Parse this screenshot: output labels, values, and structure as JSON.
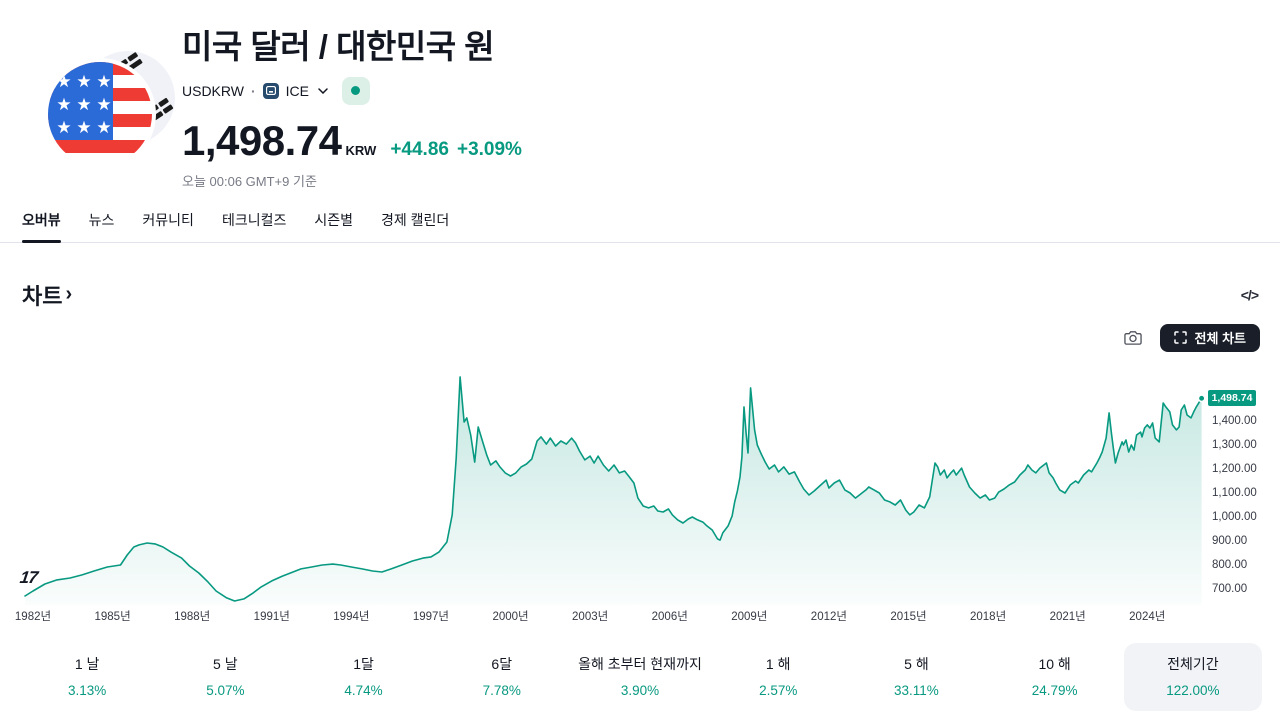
{
  "header": {
    "title": "미국 달러 / 대한민국 원",
    "symbol": "USDKRW",
    "sep_dot": "·",
    "exchange": "ICE",
    "price": "1,498.74",
    "currency": "KRW",
    "change_abs": "+44.86",
    "change_pct": "+3.09%",
    "timestamp": "오늘 00:06 GMT+9 기준",
    "status_color": "#089981"
  },
  "tabs": [
    {
      "label": "오버뷰",
      "active": true
    },
    {
      "label": "뉴스",
      "active": false
    },
    {
      "label": "커뮤니티",
      "active": false
    },
    {
      "label": "테크니컬즈",
      "active": false
    },
    {
      "label": "시즌별",
      "active": false
    },
    {
      "label": "경제 캘린더",
      "active": false
    }
  ],
  "chart_section": {
    "title": "차트",
    "link_arrow": "›",
    "code_icon": "</>",
    "fullscreen_label": "전체 차트",
    "watermark": "17"
  },
  "chart_data": {
    "type": "area",
    "title": "차트",
    "line_color": "#089981",
    "last_value": 1498.74,
    "last_label": "1,498.74",
    "x_range": [
      1981.7,
      2026.1
    ],
    "y_range": [
      650,
      1620
    ],
    "grid": false,
    "legend": false,
    "x_ticks": [
      {
        "year": 1982,
        "label": "1982년"
      },
      {
        "year": 1985,
        "label": "1985년"
      },
      {
        "year": 1988,
        "label": "1988년"
      },
      {
        "year": 1991,
        "label": "1991년"
      },
      {
        "year": 1994,
        "label": "1994년"
      },
      {
        "year": 1997,
        "label": "1997년"
      },
      {
        "year": 2000,
        "label": "2000년"
      },
      {
        "year": 2003,
        "label": "2003년"
      },
      {
        "year": 2006,
        "label": "2006년"
      },
      {
        "year": 2009,
        "label": "2009년"
      },
      {
        "year": 2012,
        "label": "2012년"
      },
      {
        "year": 2015,
        "label": "2015년"
      },
      {
        "year": 2018,
        "label": "2018년"
      },
      {
        "year": 2021,
        "label": "2021년"
      },
      {
        "year": 2024,
        "label": "2024년"
      }
    ],
    "y_ticks": [
      {
        "value": 1400,
        "label": "1,400.00"
      },
      {
        "value": 1300,
        "label": "1,300.00"
      },
      {
        "value": 1200,
        "label": "1,200.00"
      },
      {
        "value": 1100,
        "label": "1,100.00"
      },
      {
        "value": 1000,
        "label": "1,000.00"
      },
      {
        "value": 900,
        "label": "900.00"
      },
      {
        "value": 800,
        "label": "800.00"
      },
      {
        "value": 700,
        "label": "700.00"
      }
    ],
    "points": [
      [
        1981.7,
        675
      ],
      [
        1982.0,
        696
      ],
      [
        1982.45,
        725
      ],
      [
        1982.9,
        742
      ],
      [
        1983.4,
        750
      ],
      [
        1983.85,
        763
      ],
      [
        1984.3,
        779
      ],
      [
        1984.8,
        796
      ],
      [
        1985.3,
        804
      ],
      [
        1985.55,
        846
      ],
      [
        1985.8,
        879
      ],
      [
        1986.0,
        888
      ],
      [
        1986.3,
        896
      ],
      [
        1986.6,
        892
      ],
      [
        1986.9,
        879
      ],
      [
        1987.2,
        858
      ],
      [
        1987.6,
        833
      ],
      [
        1987.9,
        800
      ],
      [
        1988.25,
        771
      ],
      [
        1988.6,
        733
      ],
      [
        1988.9,
        696
      ],
      [
        1989.3,
        667
      ],
      [
        1989.6,
        654
      ],
      [
        1989.95,
        663
      ],
      [
        1990.3,
        688
      ],
      [
        1990.6,
        713
      ],
      [
        1991.0,
        738
      ],
      [
        1991.4,
        758
      ],
      [
        1991.8,
        775
      ],
      [
        1992.1,
        788
      ],
      [
        1992.5,
        796
      ],
      [
        1992.9,
        804
      ],
      [
        1993.3,
        808
      ],
      [
        1993.6,
        804
      ],
      [
        1994.0,
        796
      ],
      [
        1994.4,
        788
      ],
      [
        1994.8,
        779
      ],
      [
        1995.15,
        775
      ],
      [
        1995.5,
        788
      ],
      [
        1995.9,
        804
      ],
      [
        1996.3,
        821
      ],
      [
        1996.7,
        833
      ],
      [
        1997.0,
        838
      ],
      [
        1997.3,
        858
      ],
      [
        1997.6,
        900
      ],
      [
        1997.8,
        1013
      ],
      [
        1997.95,
        1250
      ],
      [
        1998.1,
        1588
      ],
      [
        1998.25,
        1400
      ],
      [
        1998.35,
        1417
      ],
      [
        1998.5,
        1346
      ],
      [
        1998.65,
        1233
      ],
      [
        1998.78,
        1379
      ],
      [
        1998.95,
        1317
      ],
      [
        1999.1,
        1263
      ],
      [
        1999.25,
        1221
      ],
      [
        1999.45,
        1238
      ],
      [
        1999.6,
        1213
      ],
      [
        1999.8,
        1188
      ],
      [
        2000.0,
        1175
      ],
      [
        2000.2,
        1188
      ],
      [
        2000.4,
        1213
      ],
      [
        2000.6,
        1225
      ],
      [
        2000.8,
        1246
      ],
      [
        2001.0,
        1321
      ],
      [
        2001.15,
        1338
      ],
      [
        2001.35,
        1308
      ],
      [
        2001.5,
        1333
      ],
      [
        2001.7,
        1300
      ],
      [
        2001.9,
        1321
      ],
      [
        2002.1,
        1308
      ],
      [
        2002.3,
        1333
      ],
      [
        2002.45,
        1313
      ],
      [
        2002.6,
        1279
      ],
      [
        2002.8,
        1242
      ],
      [
        2003.0,
        1258
      ],
      [
        2003.15,
        1229
      ],
      [
        2003.3,
        1258
      ],
      [
        2003.5,
        1221
      ],
      [
        2003.7,
        1196
      ],
      [
        2003.9,
        1221
      ],
      [
        2004.1,
        1188
      ],
      [
        2004.3,
        1196
      ],
      [
        2004.45,
        1175
      ],
      [
        2004.65,
        1146
      ],
      [
        2004.8,
        1083
      ],
      [
        2005.0,
        1050
      ],
      [
        2005.2,
        1042
      ],
      [
        2005.4,
        1050
      ],
      [
        2005.55,
        1029
      ],
      [
        2005.75,
        1025
      ],
      [
        2005.95,
        1038
      ],
      [
        2006.1,
        1013
      ],
      [
        2006.3,
        992
      ],
      [
        2006.5,
        979
      ],
      [
        2006.7,
        996
      ],
      [
        2006.85,
        1004
      ],
      [
        2007.05,
        992
      ],
      [
        2007.25,
        983
      ],
      [
        2007.4,
        967
      ],
      [
        2007.6,
        950
      ],
      [
        2007.8,
        913
      ],
      [
        2007.9,
        908
      ],
      [
        2008.0,
        938
      ],
      [
        2008.2,
        967
      ],
      [
        2008.35,
        1008
      ],
      [
        2008.45,
        1067
      ],
      [
        2008.55,
        1113
      ],
      [
        2008.65,
        1171
      ],
      [
        2008.72,
        1254
      ],
      [
        2008.8,
        1463
      ],
      [
        2008.88,
        1354
      ],
      [
        2008.95,
        1271
      ],
      [
        2009.05,
        1542
      ],
      [
        2009.2,
        1367
      ],
      [
        2009.3,
        1304
      ],
      [
        2009.45,
        1267
      ],
      [
        2009.6,
        1233
      ],
      [
        2009.75,
        1204
      ],
      [
        2009.95,
        1221
      ],
      [
        2010.1,
        1192
      ],
      [
        2010.3,
        1213
      ],
      [
        2010.5,
        1183
      ],
      [
        2010.7,
        1192
      ],
      [
        2010.9,
        1150
      ],
      [
        2011.05,
        1121
      ],
      [
        2011.25,
        1096
      ],
      [
        2011.45,
        1113
      ],
      [
        2011.7,
        1138
      ],
      [
        2011.9,
        1158
      ],
      [
        2012.0,
        1125
      ],
      [
        2012.2,
        1146
      ],
      [
        2012.4,
        1158
      ],
      [
        2012.6,
        1117
      ],
      [
        2012.8,
        1104
      ],
      [
        2013.0,
        1083
      ],
      [
        2013.2,
        1100
      ],
      [
        2013.4,
        1117
      ],
      [
        2013.5,
        1129
      ],
      [
        2013.7,
        1117
      ],
      [
        2013.9,
        1104
      ],
      [
        2014.1,
        1075
      ],
      [
        2014.3,
        1067
      ],
      [
        2014.5,
        1054
      ],
      [
        2014.7,
        1075
      ],
      [
        2014.9,
        1033
      ],
      [
        2015.05,
        1013
      ],
      [
        2015.2,
        1025
      ],
      [
        2015.4,
        1054
      ],
      [
        2015.6,
        1042
      ],
      [
        2015.8,
        1088
      ],
      [
        2016.0,
        1229
      ],
      [
        2016.1,
        1213
      ],
      [
        2016.2,
        1179
      ],
      [
        2016.35,
        1200
      ],
      [
        2016.45,
        1167
      ],
      [
        2016.6,
        1188
      ],
      [
        2016.7,
        1200
      ],
      [
        2016.8,
        1179
      ],
      [
        2017.0,
        1208
      ],
      [
        2017.1,
        1179
      ],
      [
        2017.3,
        1129
      ],
      [
        2017.5,
        1104
      ],
      [
        2017.7,
        1083
      ],
      [
        2017.9,
        1096
      ],
      [
        2018.05,
        1075
      ],
      [
        2018.25,
        1083
      ],
      [
        2018.4,
        1108
      ],
      [
        2018.6,
        1121
      ],
      [
        2018.8,
        1138
      ],
      [
        2019.0,
        1150
      ],
      [
        2019.2,
        1179
      ],
      [
        2019.4,
        1200
      ],
      [
        2019.5,
        1221
      ],
      [
        2019.65,
        1200
      ],
      [
        2019.8,
        1188
      ],
      [
        2019.95,
        1208
      ],
      [
        2020.1,
        1221
      ],
      [
        2020.2,
        1229
      ],
      [
        2020.3,
        1188
      ],
      [
        2020.45,
        1167
      ],
      [
        2020.55,
        1146
      ],
      [
        2020.7,
        1117
      ],
      [
        2020.9,
        1104
      ],
      [
        2021.1,
        1138
      ],
      [
        2021.3,
        1154
      ],
      [
        2021.4,
        1146
      ],
      [
        2021.6,
        1179
      ],
      [
        2021.8,
        1200
      ],
      [
        2021.9,
        1192
      ],
      [
        2022.1,
        1229
      ],
      [
        2022.2,
        1250
      ],
      [
        2022.3,
        1275
      ],
      [
        2022.45,
        1333
      ],
      [
        2022.56,
        1438
      ],
      [
        2022.65,
        1354
      ],
      [
        2022.72,
        1292
      ],
      [
        2022.8,
        1229
      ],
      [
        2022.9,
        1271
      ],
      [
        2023.05,
        1317
      ],
      [
        2023.1,
        1304
      ],
      [
        2023.2,
        1325
      ],
      [
        2023.3,
        1275
      ],
      [
        2023.4,
        1304
      ],
      [
        2023.5,
        1283
      ],
      [
        2023.6,
        1346
      ],
      [
        2023.75,
        1358
      ],
      [
        2023.8,
        1338
      ],
      [
        2023.9,
        1375
      ],
      [
        2024.0,
        1388
      ],
      [
        2024.1,
        1375
      ],
      [
        2024.2,
        1396
      ],
      [
        2024.3,
        1333
      ],
      [
        2024.45,
        1317
      ],
      [
        2024.6,
        1479
      ],
      [
        2024.7,
        1463
      ],
      [
        2024.85,
        1442
      ],
      [
        2024.95,
        1388
      ],
      [
        2025.1,
        1367
      ],
      [
        2025.2,
        1379
      ],
      [
        2025.28,
        1450
      ],
      [
        2025.4,
        1471
      ],
      [
        2025.5,
        1429
      ],
      [
        2025.65,
        1417
      ],
      [
        2025.75,
        1442
      ],
      [
        2025.85,
        1463
      ],
      [
        2026.05,
        1498.74
      ]
    ]
  },
  "periods": [
    {
      "label": "1 날",
      "change": "3.13%",
      "selected": false
    },
    {
      "label": "5 날",
      "change": "5.07%",
      "selected": false
    },
    {
      "label": "1달",
      "change": "4.74%",
      "selected": false
    },
    {
      "label": "6달",
      "change": "7.78%",
      "selected": false
    },
    {
      "label": "올해 초부터 현재까지",
      "change": "3.90%",
      "selected": false
    },
    {
      "label": "1 해",
      "change": "2.57%",
      "selected": false
    },
    {
      "label": "5 해",
      "change": "33.11%",
      "selected": false
    },
    {
      "label": "10 해",
      "change": "24.79%",
      "selected": false
    },
    {
      "label": "전체기간",
      "change": "122.00%",
      "selected": true
    }
  ]
}
